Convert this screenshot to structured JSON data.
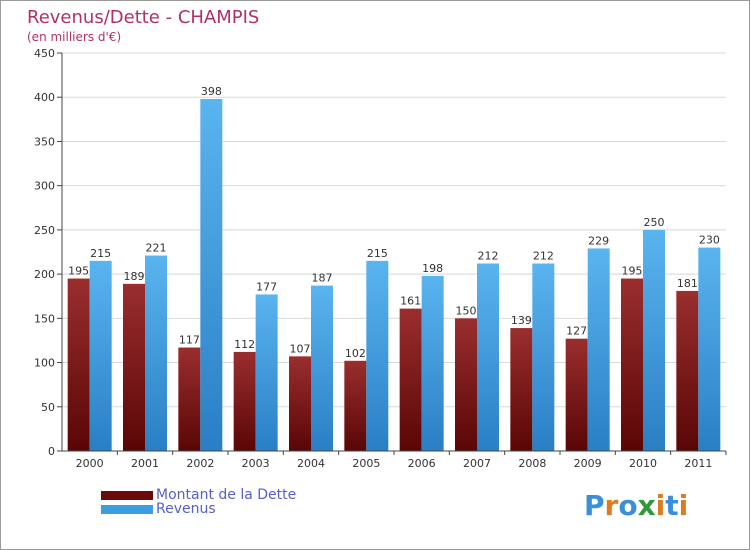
{
  "chart_data": {
    "type": "bar",
    "title": "Revenus/Dette - CHAMPIS",
    "subtitle": "(en milliers d'€)",
    "xlabel": "",
    "ylabel": "",
    "ylim": [
      0,
      450
    ],
    "yticks": [
      0,
      50,
      100,
      150,
      200,
      250,
      300,
      350,
      400,
      450
    ],
    "grid": true,
    "categories": [
      "2000",
      "2001",
      "2002",
      "2003",
      "2004",
      "2005",
      "2006",
      "2007",
      "2008",
      "2009",
      "2010",
      "2011"
    ],
    "series": [
      {
        "name": "Montant de la Dette",
        "color": "#7a1a1a",
        "values": [
          195,
          189,
          117,
          112,
          107,
          102,
          161,
          150,
          139,
          127,
          195,
          181
        ]
      },
      {
        "name": "Revenus",
        "color": "#3a9ee0",
        "values": [
          215,
          221,
          398,
          177,
          187,
          215,
          198,
          212,
          212,
          229,
          250,
          230
        ]
      }
    ],
    "legend": [
      {
        "label": "Montant de la Dette",
        "color": "#6a0a0a"
      },
      {
        "label": "Revenus",
        "color": "#3a9ee0"
      }
    ]
  },
  "logo": {
    "text": "Proxiti",
    "colors": [
      "#3a8fd8",
      "#e07a20",
      "#3a8fd8",
      "#2e9a3a",
      "#e07a20",
      "#3a8fd8",
      "#e07a20"
    ]
  }
}
